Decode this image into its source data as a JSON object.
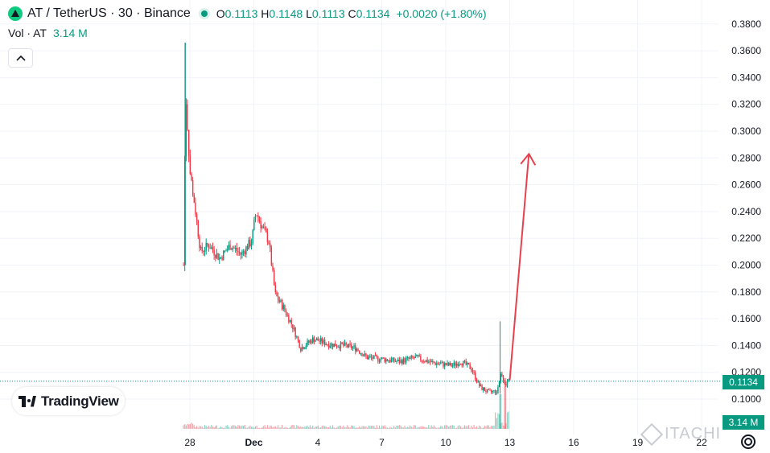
{
  "header": {
    "symbol": "AT / TetherUS · 30 · Binance",
    "ohlc": {
      "o_label": "O",
      "o": "0.1113",
      "h_label": "H",
      "h": "0.1148",
      "l_label": "L",
      "l": "0.1113",
      "c_label": "C",
      "c": "0.1134"
    },
    "change": "+0.0020 (+1.80%)",
    "volume_label": "Vol · AT",
    "volume_value": "3.14 M",
    "collapse_icon": "chevron-up-icon"
  },
  "logo": {
    "text": "TradingView"
  },
  "watermark": {
    "text": "ITACHI"
  },
  "colors": {
    "up": "#089981",
    "down": "#f23645",
    "arrow": "#e8414e",
    "grid": "#f0f3fa"
  },
  "last_price_label": "0.1134",
  "last_volume_label": "3.14 M",
  "chart_data": {
    "type": "candlestick",
    "pair": "AT/USDT",
    "interval": "30",
    "exchange": "Binance",
    "x_ticks": [
      "28",
      "Dec",
      "4",
      "7",
      "10",
      "13",
      "16",
      "19",
      "22"
    ],
    "x_tick_days": [
      28,
      31,
      34,
      37,
      40,
      43,
      46,
      49,
      52
    ],
    "y_ticks": [
      "0.1000",
      "0.1200",
      "0.1400",
      "0.1600",
      "0.1800",
      "0.2000",
      "0.2200",
      "0.2400",
      "0.2600",
      "0.2800",
      "0.3000",
      "0.3200",
      "0.3400",
      "0.3600",
      "0.3800"
    ],
    "ylim": [
      0.092,
      0.388
    ],
    "grid": true,
    "last_price": 0.1134,
    "price_path": [
      {
        "day": 27.7,
        "price": 0.2
      },
      {
        "day": 27.8,
        "price": 0.33
      },
      {
        "day": 28.0,
        "price": 0.27
      },
      {
        "day": 28.2,
        "price": 0.248
      },
      {
        "day": 28.5,
        "price": 0.21
      },
      {
        "day": 28.9,
        "price": 0.215
      },
      {
        "day": 29.4,
        "price": 0.205
      },
      {
        "day": 29.9,
        "price": 0.215
      },
      {
        "day": 30.4,
        "price": 0.208
      },
      {
        "day": 30.9,
        "price": 0.218
      },
      {
        "day": 31.1,
        "price": 0.24
      },
      {
        "day": 31.4,
        "price": 0.228
      },
      {
        "day": 31.7,
        "price": 0.218
      },
      {
        "day": 32.0,
        "price": 0.178
      },
      {
        "day": 32.4,
        "price": 0.168
      },
      {
        "day": 32.8,
        "price": 0.155
      },
      {
        "day": 33.2,
        "price": 0.138
      },
      {
        "day": 33.8,
        "price": 0.145
      },
      {
        "day": 34.5,
        "price": 0.141
      },
      {
        "day": 35.2,
        "price": 0.14
      },
      {
        "day": 35.8,
        "price": 0.138
      },
      {
        "day": 36.3,
        "price": 0.131
      },
      {
        "day": 37.0,
        "price": 0.13
      },
      {
        "day": 37.8,
        "price": 0.128
      },
      {
        "day": 38.6,
        "price": 0.131
      },
      {
        "day": 39.4,
        "price": 0.127
      },
      {
        "day": 40.3,
        "price": 0.125
      },
      {
        "day": 40.7,
        "price": 0.128
      },
      {
        "day": 41.2,
        "price": 0.123
      },
      {
        "day": 41.6,
        "price": 0.109
      },
      {
        "day": 42.0,
        "price": 0.105
      },
      {
        "day": 42.4,
        "price": 0.106
      },
      {
        "day": 42.6,
        "price": 0.12
      },
      {
        "day": 42.8,
        "price": 0.111
      },
      {
        "day": 43.0,
        "price": 0.1134
      }
    ],
    "annotation_arrow": {
      "from": {
        "day": 43.0,
        "price": 0.114
      },
      "to": {
        "day": 43.9,
        "price": 0.283
      }
    }
  }
}
